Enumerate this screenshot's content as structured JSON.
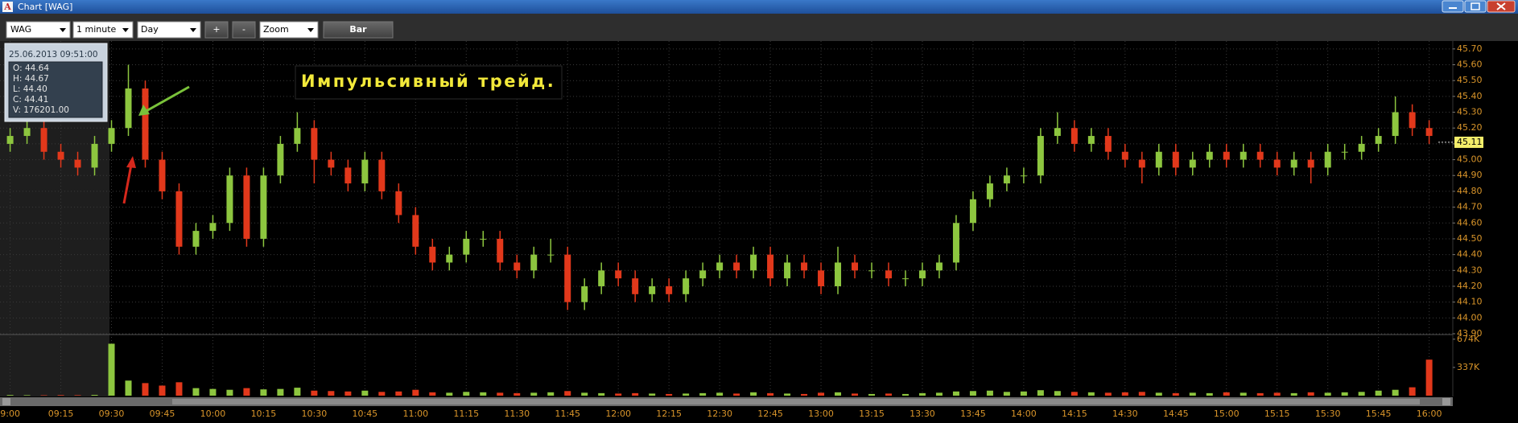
{
  "window_title": "Chart [WAG]",
  "toolbar": {
    "symbol": "WAG",
    "interval": "1 minute",
    "range": "Day",
    "plus": "+",
    "minus": "-",
    "zoom": "Zoom",
    "style": "Bar"
  },
  "info_box": {
    "datetime": "25.06.2013 09:51:00",
    "lines": [
      "O: 44.64",
      "H: 44.67",
      "L: 44.40",
      "C: 44.41",
      "V: 176201.00"
    ]
  },
  "annotation": "Импульсивный трейд.",
  "chart_data": {
    "type": "candlestick",
    "x": [
      "09:00",
      "09:05",
      "09:10",
      "09:15",
      "09:20",
      "09:25",
      "09:30",
      "09:35",
      "09:40",
      "09:45",
      "09:50",
      "09:55",
      "10:00",
      "10:05",
      "10:10",
      "10:15",
      "10:20",
      "10:25",
      "10:30",
      "10:35",
      "10:40",
      "10:45",
      "10:50",
      "10:55",
      "11:00",
      "11:05",
      "11:10",
      "11:15",
      "11:20",
      "11:25",
      "11:30",
      "11:35",
      "11:40",
      "11:45",
      "11:50",
      "11:55",
      "12:00",
      "12:05",
      "12:10",
      "12:15",
      "12:20",
      "12:25",
      "12:30",
      "12:35",
      "12:40",
      "12:45",
      "12:50",
      "12:55",
      "13:00",
      "13:05",
      "13:10",
      "13:15",
      "13:20",
      "13:25",
      "13:30",
      "13:35",
      "13:40",
      "13:45",
      "13:50",
      "13:55",
      "14:00",
      "14:05",
      "14:10",
      "14:15",
      "14:20",
      "14:25",
      "14:30",
      "14:35",
      "14:40",
      "14:45",
      "14:50",
      "14:55",
      "15:00",
      "15:05",
      "15:10",
      "15:15",
      "15:20",
      "15:25",
      "15:30",
      "15:35",
      "15:40",
      "15:45",
      "15:50",
      "15:55",
      "16:00"
    ],
    "open": [
      45.1,
      45.15,
      45.2,
      45.05,
      45.0,
      44.95,
      45.1,
      45.2,
      45.45,
      45.0,
      44.8,
      44.45,
      44.55,
      44.6,
      44.9,
      44.5,
      44.9,
      45.1,
      45.2,
      45.0,
      44.95,
      44.85,
      45.0,
      44.8,
      44.65,
      44.45,
      44.35,
      44.4,
      44.5,
      44.5,
      44.35,
      44.3,
      44.4,
      44.4,
      44.1,
      44.2,
      44.3,
      44.25,
      44.15,
      44.2,
      44.15,
      44.25,
      44.3,
      44.35,
      44.3,
      44.4,
      44.25,
      44.35,
      44.3,
      44.2,
      44.35,
      44.3,
      44.3,
      44.25,
      44.25,
      44.3,
      44.35,
      44.6,
      44.75,
      44.85,
      44.9,
      44.9,
      45.15,
      45.2,
      45.1,
      45.15,
      45.05,
      45.0,
      44.95,
      45.05,
      44.95,
      45.0,
      45.05,
      45.0,
      45.05,
      45.0,
      44.95,
      45.0,
      44.95,
      45.05,
      45.05,
      45.1,
      45.15,
      45.3,
      45.2
    ],
    "high": [
      45.2,
      45.25,
      45.25,
      45.1,
      45.05,
      45.15,
      45.25,
      45.6,
      45.5,
      45.05,
      44.85,
      44.6,
      44.65,
      44.95,
      44.95,
      44.95,
      45.15,
      45.3,
      45.25,
      45.05,
      45.0,
      45.05,
      45.05,
      44.85,
      44.7,
      44.5,
      44.45,
      44.55,
      44.55,
      44.55,
      44.4,
      44.45,
      44.5,
      44.45,
      44.25,
      44.35,
      44.35,
      44.3,
      44.25,
      44.25,
      44.3,
      44.35,
      44.4,
      44.4,
      44.45,
      44.45,
      44.4,
      44.4,
      44.35,
      44.45,
      44.4,
      44.35,
      44.35,
      44.3,
      44.35,
      44.4,
      44.65,
      44.8,
      44.9,
      44.95,
      44.95,
      45.2,
      45.3,
      45.25,
      45.2,
      45.2,
      45.1,
      45.05,
      45.1,
      45.1,
      45.05,
      45.1,
      45.1,
      45.1,
      45.1,
      45.05,
      45.05,
      45.05,
      45.1,
      45.1,
      45.15,
      45.2,
      45.4,
      45.35,
      45.25
    ],
    "low": [
      45.05,
      45.1,
      45.0,
      44.95,
      44.9,
      44.9,
      45.05,
      45.15,
      44.95,
      44.75,
      44.4,
      44.4,
      44.5,
      44.55,
      44.45,
      44.45,
      44.85,
      45.05,
      44.85,
      44.9,
      44.8,
      44.8,
      44.75,
      44.6,
      44.4,
      44.3,
      44.3,
      44.35,
      44.45,
      44.3,
      44.25,
      44.25,
      44.35,
      44.05,
      44.05,
      44.15,
      44.2,
      44.1,
      44.1,
      44.1,
      44.1,
      44.2,
      44.25,
      44.25,
      44.25,
      44.2,
      44.2,
      44.25,
      44.15,
      44.15,
      44.25,
      44.25,
      44.2,
      44.2,
      44.2,
      44.25,
      44.3,
      44.55,
      44.7,
      44.8,
      44.85,
      44.85,
      45.1,
      45.05,
      45.05,
      45.0,
      44.95,
      44.85,
      44.9,
      44.9,
      44.9,
      44.95,
      44.95,
      44.95,
      44.95,
      44.9,
      44.9,
      44.85,
      44.9,
      45.0,
      45.0,
      45.05,
      45.1,
      45.15,
      45.1
    ],
    "close": [
      45.15,
      45.2,
      45.05,
      45.0,
      44.95,
      45.1,
      45.2,
      45.45,
      45.0,
      44.8,
      44.45,
      44.55,
      44.6,
      44.9,
      44.5,
      44.9,
      45.1,
      45.2,
      45.0,
      44.95,
      44.85,
      45.0,
      44.8,
      44.65,
      44.45,
      44.35,
      44.4,
      44.5,
      44.5,
      44.35,
      44.3,
      44.4,
      44.4,
      44.1,
      44.2,
      44.3,
      44.25,
      44.15,
      44.2,
      44.15,
      44.25,
      44.3,
      44.35,
      44.3,
      44.4,
      44.25,
      44.35,
      44.3,
      44.2,
      44.35,
      44.3,
      44.3,
      44.25,
      44.25,
      44.3,
      44.35,
      44.6,
      44.75,
      44.85,
      44.9,
      44.9,
      45.15,
      45.2,
      45.1,
      45.15,
      45.05,
      45.0,
      44.95,
      45.05,
      44.95,
      45.0,
      45.05,
      45.0,
      45.05,
      45.0,
      44.95,
      45.0,
      44.95,
      45.05,
      45.05,
      45.1,
      45.15,
      45.3,
      45.2,
      45.15
    ],
    "volume": [
      8000,
      6000,
      5000,
      7000,
      6000,
      9000,
      620000,
      180000,
      150000,
      120000,
      160000,
      90000,
      80000,
      70000,
      90000,
      75000,
      80000,
      95000,
      60000,
      55000,
      50000,
      60000,
      45000,
      50000,
      70000,
      40000,
      35000,
      45000,
      40000,
      35000,
      30000,
      35000,
      40000,
      55000,
      35000,
      30000,
      25000,
      30000,
      25000,
      20000,
      25000,
      30000,
      35000,
      25000,
      40000,
      30000,
      25000,
      20000,
      35000,
      40000,
      25000,
      20000,
      25000,
      20000,
      30000,
      35000,
      50000,
      55000,
      60000,
      45000,
      50000,
      65000,
      55000,
      45000,
      40000,
      35000,
      40000,
      45000,
      35000,
      30000,
      35000,
      30000,
      40000,
      35000,
      30000,
      35000,
      30000,
      40000,
      35000,
      40000,
      45000,
      60000,
      70000,
      100000,
      430000
    ],
    "up_color": "#8dc63f",
    "down_color": "#e2381b",
    "xlim": [
      "08:57",
      "16:07"
    ],
    "xticks": [
      "9:00",
      "09:15",
      "09:30",
      "09:45",
      "10:00",
      "10:15",
      "10:30",
      "10:45",
      "11:00",
      "11:15",
      "11:30",
      "11:45",
      "12:00",
      "12:15",
      "12:30",
      "12:45",
      "13:00",
      "13:15",
      "13:30",
      "13:45",
      "14:00",
      "14:15",
      "14:30",
      "14:45",
      "15:00",
      "15:15",
      "15:30",
      "15:45",
      "16:00"
    ],
    "ylim": [
      43.9,
      45.75
    ],
    "yticks": [
      {
        "value": 45.7,
        "label": "45.70"
      },
      {
        "value": 45.6,
        "label": "45.60"
      },
      {
        "value": 45.5,
        "label": "45.50"
      },
      {
        "value": 45.4,
        "label": "45.40"
      },
      {
        "value": 45.3,
        "label": "45.30"
      },
      {
        "value": 45.2,
        "label": "45.20"
      },
      {
        "value": 45.1,
        "label": "45.10"
      },
      {
        "value": 45.0,
        "label": "45.00"
      },
      {
        "value": 44.9,
        "label": "44.90"
      },
      {
        "value": 44.8,
        "label": "44.80"
      },
      {
        "value": 44.7,
        "label": "44.70"
      },
      {
        "value": 44.6,
        "label": "44.60"
      },
      {
        "value": 44.5,
        "label": "44.50"
      },
      {
        "value": 44.4,
        "label": "44.40"
      },
      {
        "value": 44.3,
        "label": "44.30"
      },
      {
        "value": 44.2,
        "label": "44.20"
      },
      {
        "value": 44.1,
        "label": "44.10"
      },
      {
        "value": 44.0,
        "label": "44.00"
      },
      {
        "value": 43.9,
        "label": "43.90"
      }
    ],
    "volume_ylim": [
      0,
      720000
    ],
    "volume_yticks": [
      {
        "value": 674000,
        "label": "674K"
      },
      {
        "value": 337000,
        "label": "337K"
      }
    ],
    "last_price": 45.11,
    "grid": true
  }
}
